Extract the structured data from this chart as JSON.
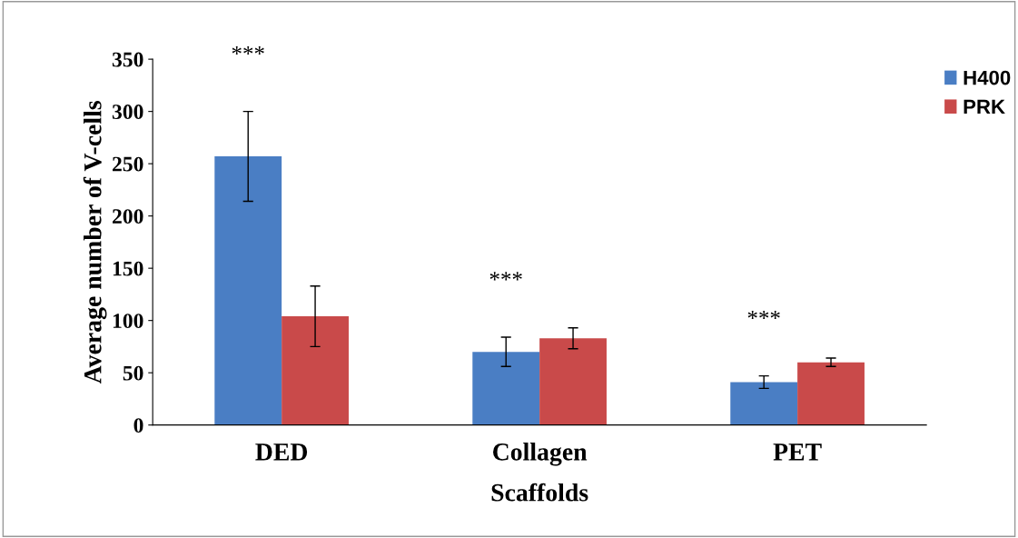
{
  "chart_data": {
    "type": "bar",
    "xlabel": "Scaffolds",
    "ylabel": "Average number of V-cells",
    "categories": [
      "DED",
      "Collagen",
      "PET"
    ],
    "series": [
      {
        "name": "H400",
        "color": "#4a7ec4",
        "values": [
          257,
          70,
          41
        ],
        "errors": [
          43,
          14,
          6
        ]
      },
      {
        "name": "PRK",
        "color": "#c94a4a",
        "values": [
          104,
          83,
          60
        ],
        "errors": [
          29,
          10,
          4
        ]
      }
    ],
    "ylim": [
      0,
      350
    ],
    "yticks": [
      0,
      50,
      100,
      150,
      200,
      250,
      300,
      350
    ],
    "annotations": [
      "***",
      "***",
      "***"
    ],
    "grid": false,
    "legend": "top right"
  }
}
